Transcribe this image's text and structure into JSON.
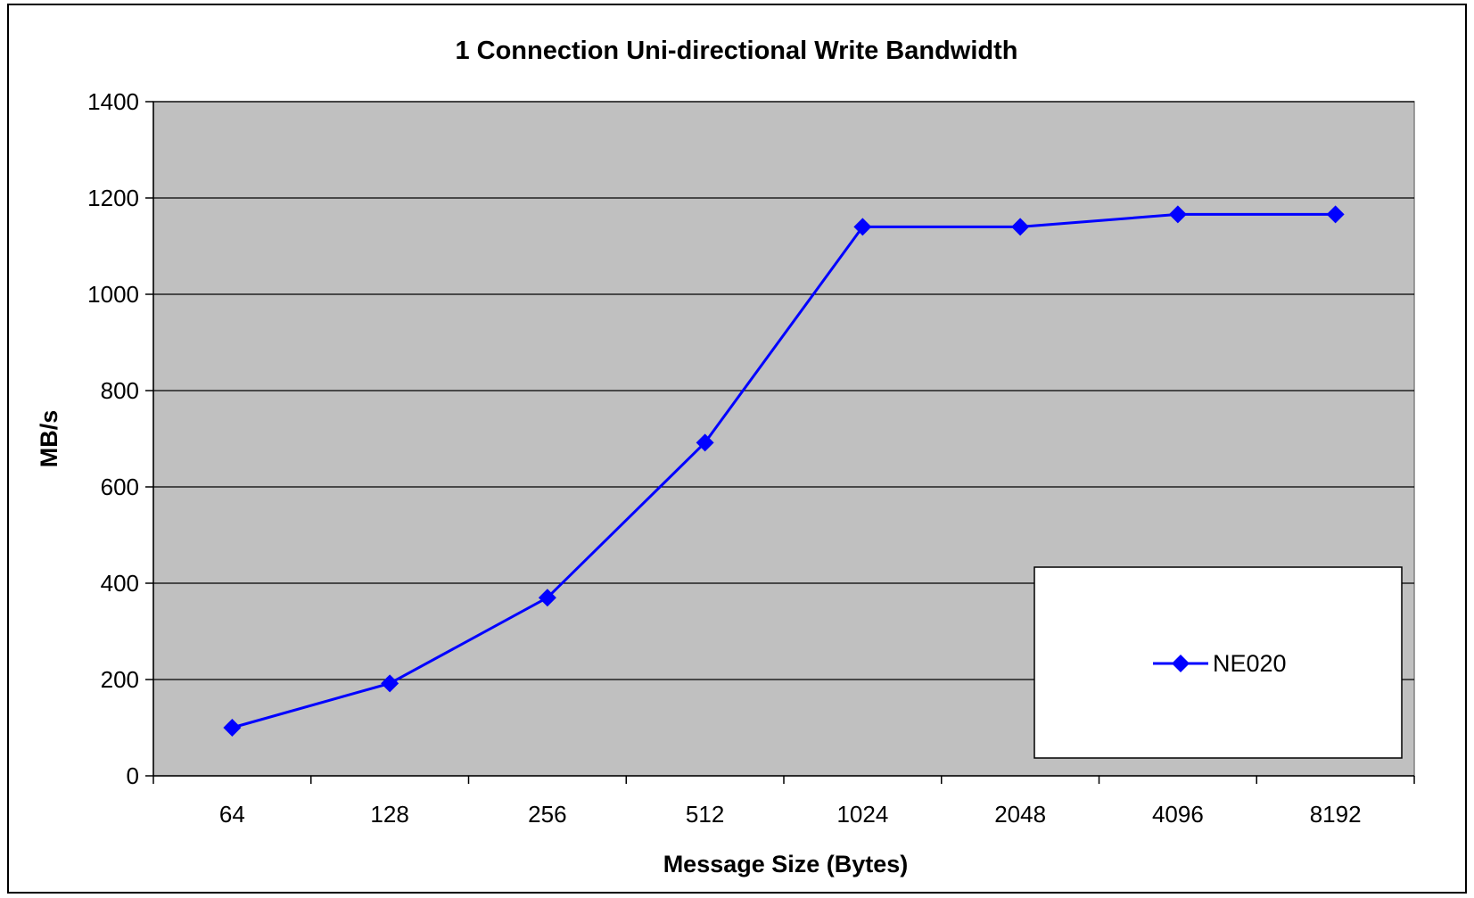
{
  "chart_data": {
    "type": "line",
    "title": "1 Connection Uni-directional Write Bandwidth",
    "xlabel": "Message Size (Bytes)",
    "ylabel": "MB/s",
    "categories": [
      "64",
      "128",
      "256",
      "512",
      "1024",
      "2048",
      "4096",
      "8192"
    ],
    "series": [
      {
        "name": "NE020",
        "values": [
          100,
          192,
          370,
          692,
          1140,
          1140,
          1166,
          1166
        ],
        "color": "#0000ff",
        "marker": "diamond"
      }
    ],
    "ylim": [
      0,
      1400
    ],
    "yticks": [
      0,
      200,
      400,
      600,
      800,
      1000,
      1200,
      1400
    ],
    "grid": "horizontal",
    "legend_position": "bottom-right",
    "plot_background": "#c0c0c0"
  }
}
